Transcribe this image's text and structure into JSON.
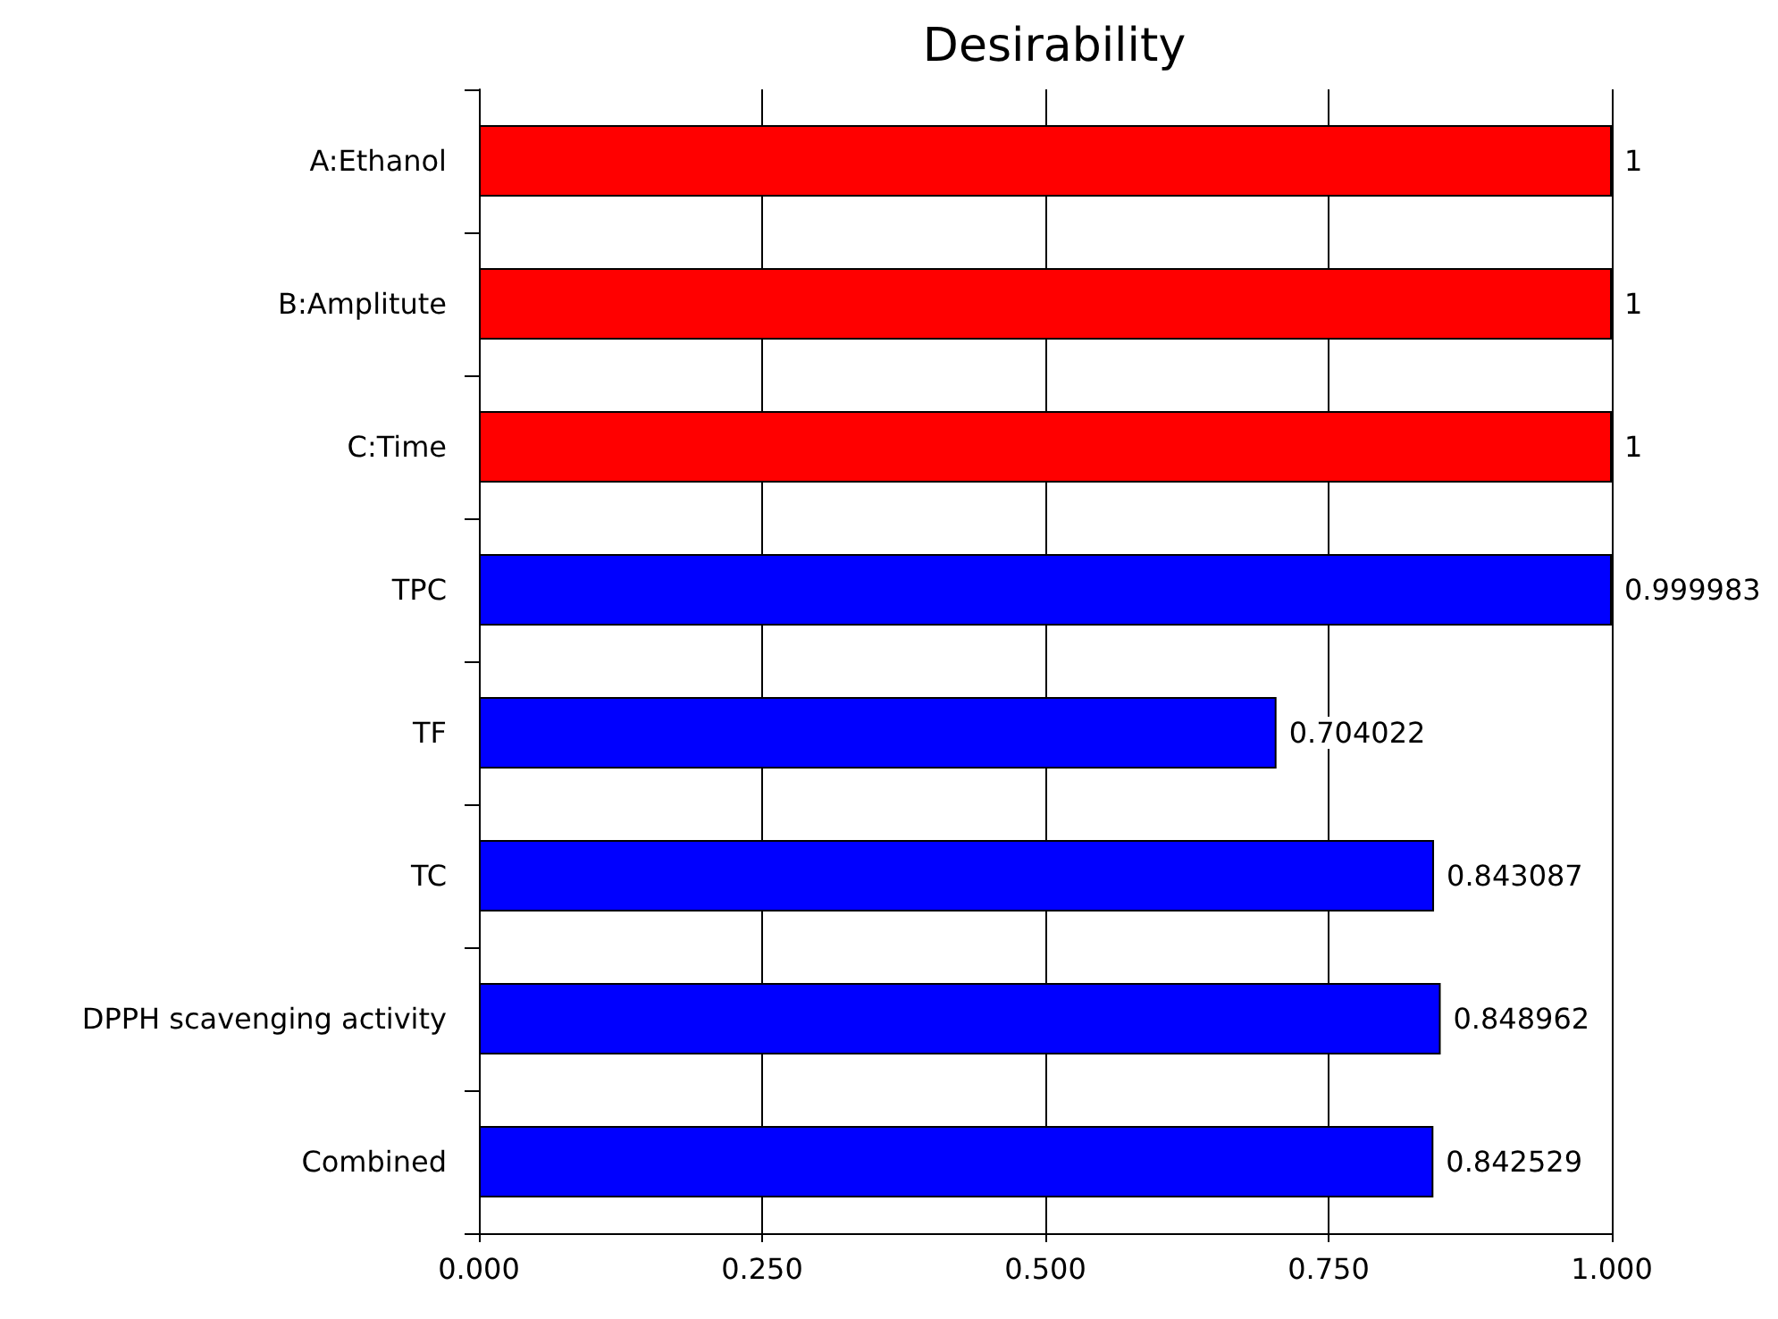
{
  "chart_data": {
    "type": "bar",
    "orientation": "horizontal",
    "title": "Desirability",
    "categories": [
      "A:Ethanol",
      "B:Amplitute",
      "C:Time",
      "TPC",
      "TF",
      "TC",
      "DPPH scavenging activity",
      "Combined"
    ],
    "values": [
      1,
      1,
      1,
      0.999983,
      0.704022,
      0.843087,
      0.848962,
      0.842529
    ],
    "colors": [
      "#ff0000",
      "#ff0000",
      "#ff0000",
      "#0000ff",
      "#0000ff",
      "#0000ff",
      "#0000ff",
      "#0000ff"
    ],
    "xlim": [
      0,
      1
    ],
    "xticks": [
      {
        "value": 0,
        "label": "0.000"
      },
      {
        "value": 0.25,
        "label": "0.250"
      },
      {
        "value": 0.5,
        "label": "0.500"
      },
      {
        "value": 0.75,
        "label": "0.750"
      },
      {
        "value": 1,
        "label": "1.000"
      }
    ],
    "grid": "x",
    "data_labels": true
  }
}
